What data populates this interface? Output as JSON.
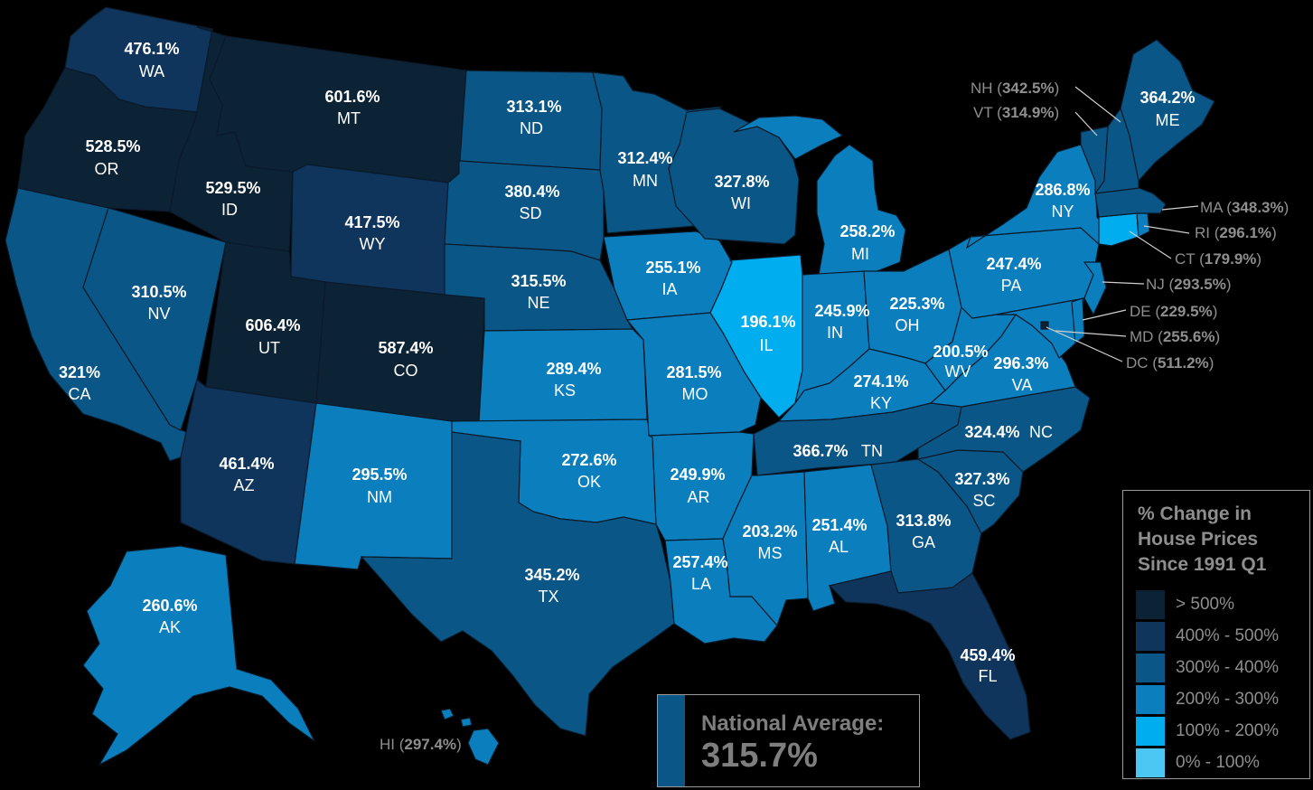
{
  "legend": {
    "title": "% Change in\nHouse Prices\nSince 1991 Q1",
    "bins": [
      {
        "label": "> 500%",
        "color": "#0c2235"
      },
      {
        "label": "400% - 500%",
        "color": "#0f355c"
      },
      {
        "label": "300% - 400%",
        "color": "#0a5686"
      },
      {
        "label": "200% - 300%",
        "color": "#0b7fbd"
      },
      {
        "label": "100% - 200%",
        "color": "#00aeef"
      },
      {
        "label": "0% - 100%",
        "color": "#4cc6f2"
      }
    ]
  },
  "national_average": {
    "label": "National Average:",
    "value": "315.7%",
    "color": "#0a5686"
  },
  "states": {
    "WA": {
      "pct": "476.1%",
      "abbr": "WA",
      "bin": 1
    },
    "OR": {
      "pct": "528.5%",
      "abbr": "OR",
      "bin": 0
    },
    "CA": {
      "pct": "321%",
      "abbr": "CA",
      "bin": 2
    },
    "ID": {
      "pct": "529.5%",
      "abbr": "ID",
      "bin": 0
    },
    "NV": {
      "pct": "310.5%",
      "abbr": "NV",
      "bin": 2
    },
    "MT": {
      "pct": "601.6%",
      "abbr": "MT",
      "bin": 0
    },
    "WY": {
      "pct": "417.5%",
      "abbr": "WY",
      "bin": 1
    },
    "UT": {
      "pct": "606.4%",
      "abbr": "UT",
      "bin": 0
    },
    "CO": {
      "pct": "587.4%",
      "abbr": "CO",
      "bin": 0
    },
    "AZ": {
      "pct": "461.4%",
      "abbr": "AZ",
      "bin": 1
    },
    "NM": {
      "pct": "295.5%",
      "abbr": "NM",
      "bin": 3
    },
    "ND": {
      "pct": "313.1%",
      "abbr": "ND",
      "bin": 2
    },
    "SD": {
      "pct": "380.4%",
      "abbr": "SD",
      "bin": 2
    },
    "NE": {
      "pct": "315.5%",
      "abbr": "NE",
      "bin": 2
    },
    "KS": {
      "pct": "289.4%",
      "abbr": "KS",
      "bin": 3
    },
    "OK": {
      "pct": "272.6%",
      "abbr": "OK",
      "bin": 3
    },
    "TX": {
      "pct": "345.2%",
      "abbr": "TX",
      "bin": 2
    },
    "MN": {
      "pct": "312.4%",
      "abbr": "MN",
      "bin": 2
    },
    "IA": {
      "pct": "255.1%",
      "abbr": "IA",
      "bin": 3
    },
    "MO": {
      "pct": "281.5%",
      "abbr": "MO",
      "bin": 3
    },
    "AR": {
      "pct": "249.9%",
      "abbr": "AR",
      "bin": 3
    },
    "LA": {
      "pct": "257.4%",
      "abbr": "LA",
      "bin": 3
    },
    "WI": {
      "pct": "327.8%",
      "abbr": "WI",
      "bin": 2
    },
    "IL": {
      "pct": "196.1%",
      "abbr": "IL",
      "bin": 4
    },
    "MI": {
      "pct": "258.2%",
      "abbr": "MI",
      "bin": 3
    },
    "IN": {
      "pct": "245.9%",
      "abbr": "IN",
      "bin": 3
    },
    "OH": {
      "pct": "225.3%",
      "abbr": "OH",
      "bin": 3
    },
    "KY": {
      "pct": "274.1%",
      "abbr": "KY",
      "bin": 3
    },
    "TN": {
      "pct": "366.7%",
      "abbr": "TN",
      "bin": 2
    },
    "MS": {
      "pct": "203.2%",
      "abbr": "MS",
      "bin": 3
    },
    "AL": {
      "pct": "251.4%",
      "abbr": "AL",
      "bin": 3
    },
    "GA": {
      "pct": "313.8%",
      "abbr": "GA",
      "bin": 2
    },
    "FL": {
      "pct": "459.4%",
      "abbr": "FL",
      "bin": 1
    },
    "SC": {
      "pct": "327.3%",
      "abbr": "SC",
      "bin": 2
    },
    "NC": {
      "pct": "324.4%",
      "abbr": "NC",
      "bin": 2
    },
    "VA": {
      "pct": "296.3%",
      "abbr": "VA",
      "bin": 3
    },
    "WV": {
      "pct": "200.5%",
      "abbr": "WV",
      "bin": 3
    },
    "PA": {
      "pct": "247.4%",
      "abbr": "PA",
      "bin": 3
    },
    "NY": {
      "pct": "286.8%",
      "abbr": "NY",
      "bin": 3
    },
    "ME": {
      "pct": "364.2%",
      "abbr": "ME",
      "bin": 2
    },
    "AK": {
      "pct": "260.6%",
      "abbr": "AK",
      "bin": 3
    },
    "VT": {
      "pct": "314.9%",
      "abbr": "VT",
      "bin": 2
    },
    "NH": {
      "pct": "342.5%",
      "abbr": "NH",
      "bin": 2
    },
    "MA": {
      "pct": "348.3%",
      "abbr": "MA",
      "bin": 2
    },
    "CT": {
      "pct": "179.9%",
      "abbr": "CT",
      "bin": 4
    },
    "RI": {
      "pct": "296.1%",
      "abbr": "RI",
      "bin": 3
    },
    "NJ": {
      "pct": "293.5%",
      "abbr": "NJ",
      "bin": 3
    },
    "DE": {
      "pct": "229.5%",
      "abbr": "DE",
      "bin": 3
    },
    "MD": {
      "pct": "255.6%",
      "abbr": "MD",
      "bin": 3
    },
    "DC": {
      "pct": "511.2%",
      "abbr": "DC",
      "bin": 0
    },
    "HI": {
      "pct": "297.4%",
      "abbr": "HI",
      "bin": 3
    }
  }
}
